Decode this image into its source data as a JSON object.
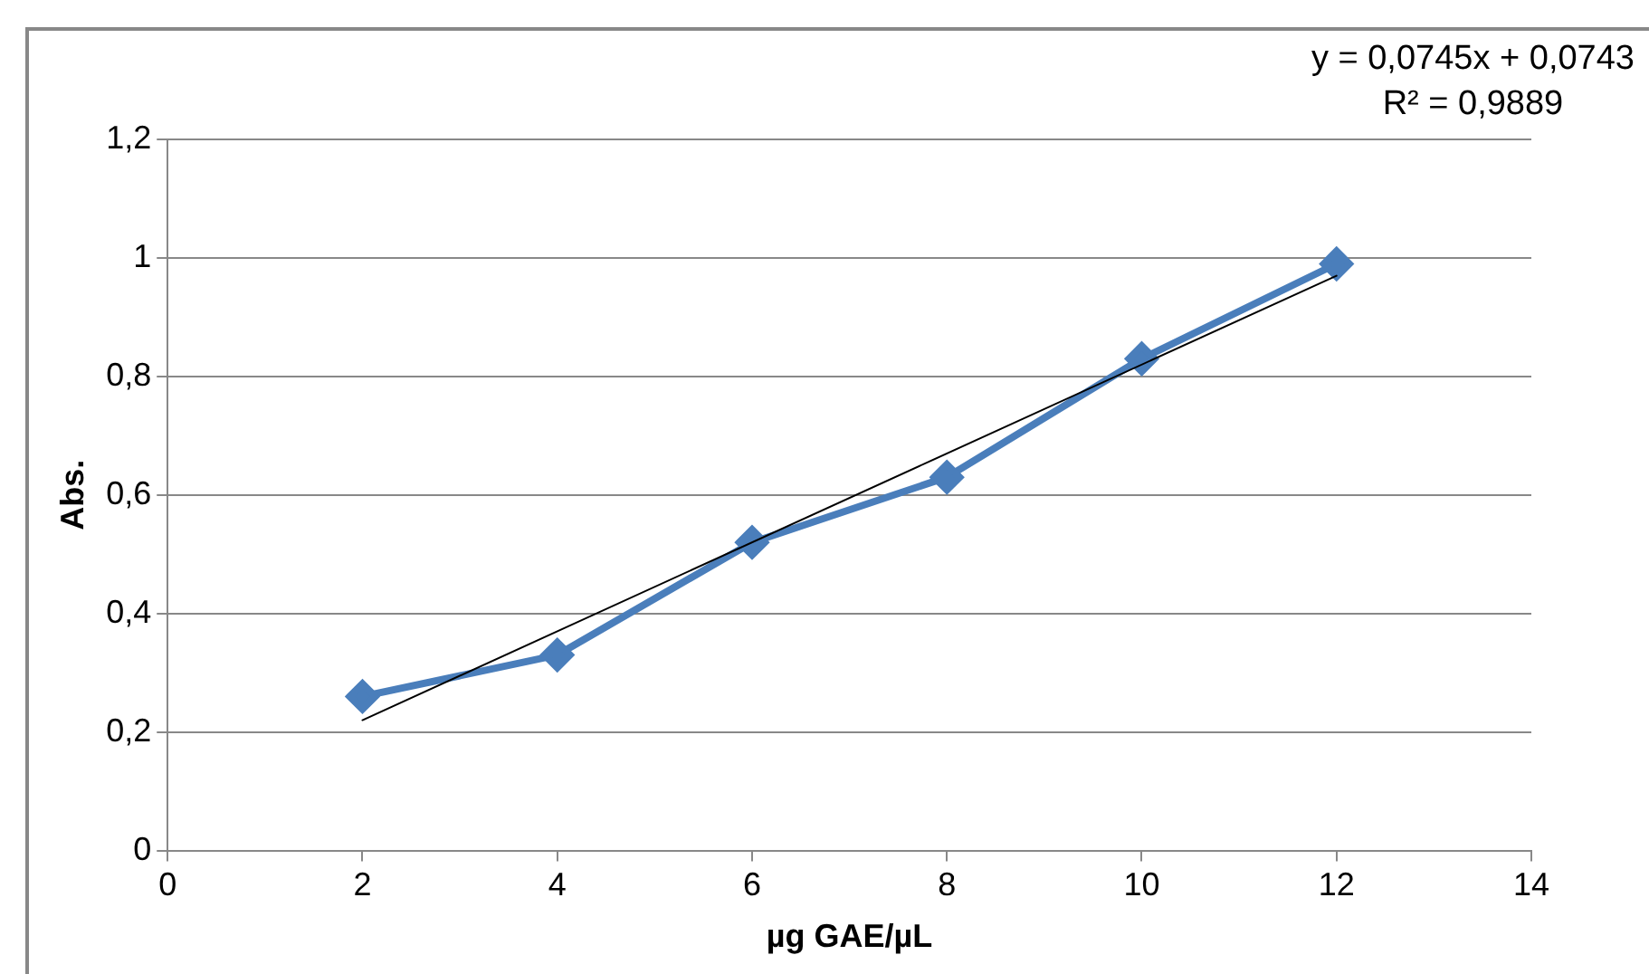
{
  "chart_data": {
    "type": "line",
    "xlabel": "µg GAE/µL",
    "ylabel": "Abs.",
    "xlim": [
      0,
      14
    ],
    "xticks": [
      0,
      2,
      4,
      6,
      8,
      10,
      12,
      14
    ],
    "ylim": [
      0,
      1.2
    ],
    "yticks": [
      {
        "value": 0,
        "label": "0"
      },
      {
        "value": 0.2,
        "label": "0,2"
      },
      {
        "value": 0.4,
        "label": "0,4"
      },
      {
        "value": 0.6,
        "label": "0,6"
      },
      {
        "value": 0.8,
        "label": "0,8"
      },
      {
        "value": 1,
        "label": "1"
      },
      {
        "value": 1.2,
        "label": "1,2"
      }
    ],
    "grid": "y",
    "legend": false,
    "marker": "diamond",
    "series": [
      {
        "color": "#4a7ebb",
        "x": [
          2,
          4,
          6,
          8,
          10,
          12
        ],
        "values": [
          0.26,
          0.33,
          0.52,
          0.63,
          0.83,
          0.99
        ]
      },
      {
        "type": "line",
        "color": "#000000",
        "marker": "none",
        "x": [
          2,
          12
        ],
        "values": [
          0.22,
          0.97
        ]
      }
    ],
    "annotations": [
      "y = 0,0745x + 0,0743",
      "R² = 0,9889"
    ]
  }
}
